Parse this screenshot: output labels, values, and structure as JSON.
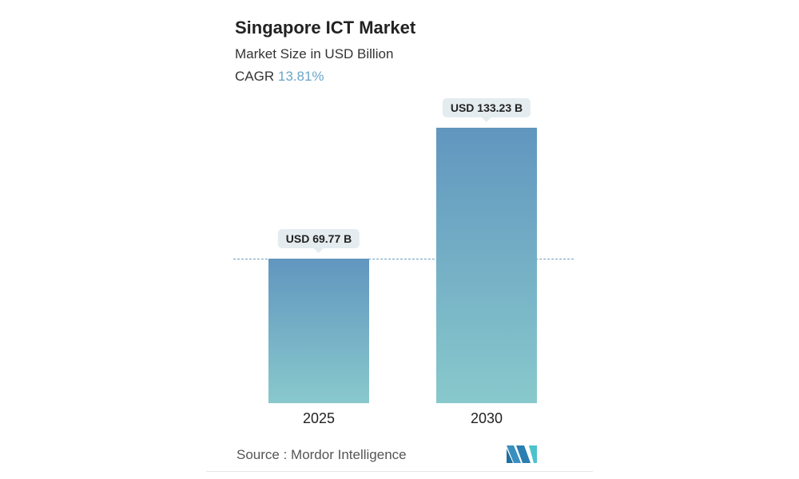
{
  "chart_data": {
    "type": "bar",
    "title": "Singapore ICT Market",
    "subtitle": "Market Size in USD Billion",
    "cagr_label": "CAGR",
    "cagr_value": "13.81%",
    "categories": [
      "2025",
      "2030"
    ],
    "values": [
      69.77,
      133.23
    ],
    "data_labels": [
      "USD 69.77 B",
      "USD 133.23 B"
    ],
    "ylim": [
      0,
      140
    ],
    "grid": false,
    "colors": {
      "bar_top": "#6196bf",
      "bar_bottom": "#88c9cc",
      "cagr": "#6aa6c8"
    },
    "source": "Source :  Mordor Intelligence",
    "logo": "Mordor Intelligence logo"
  }
}
